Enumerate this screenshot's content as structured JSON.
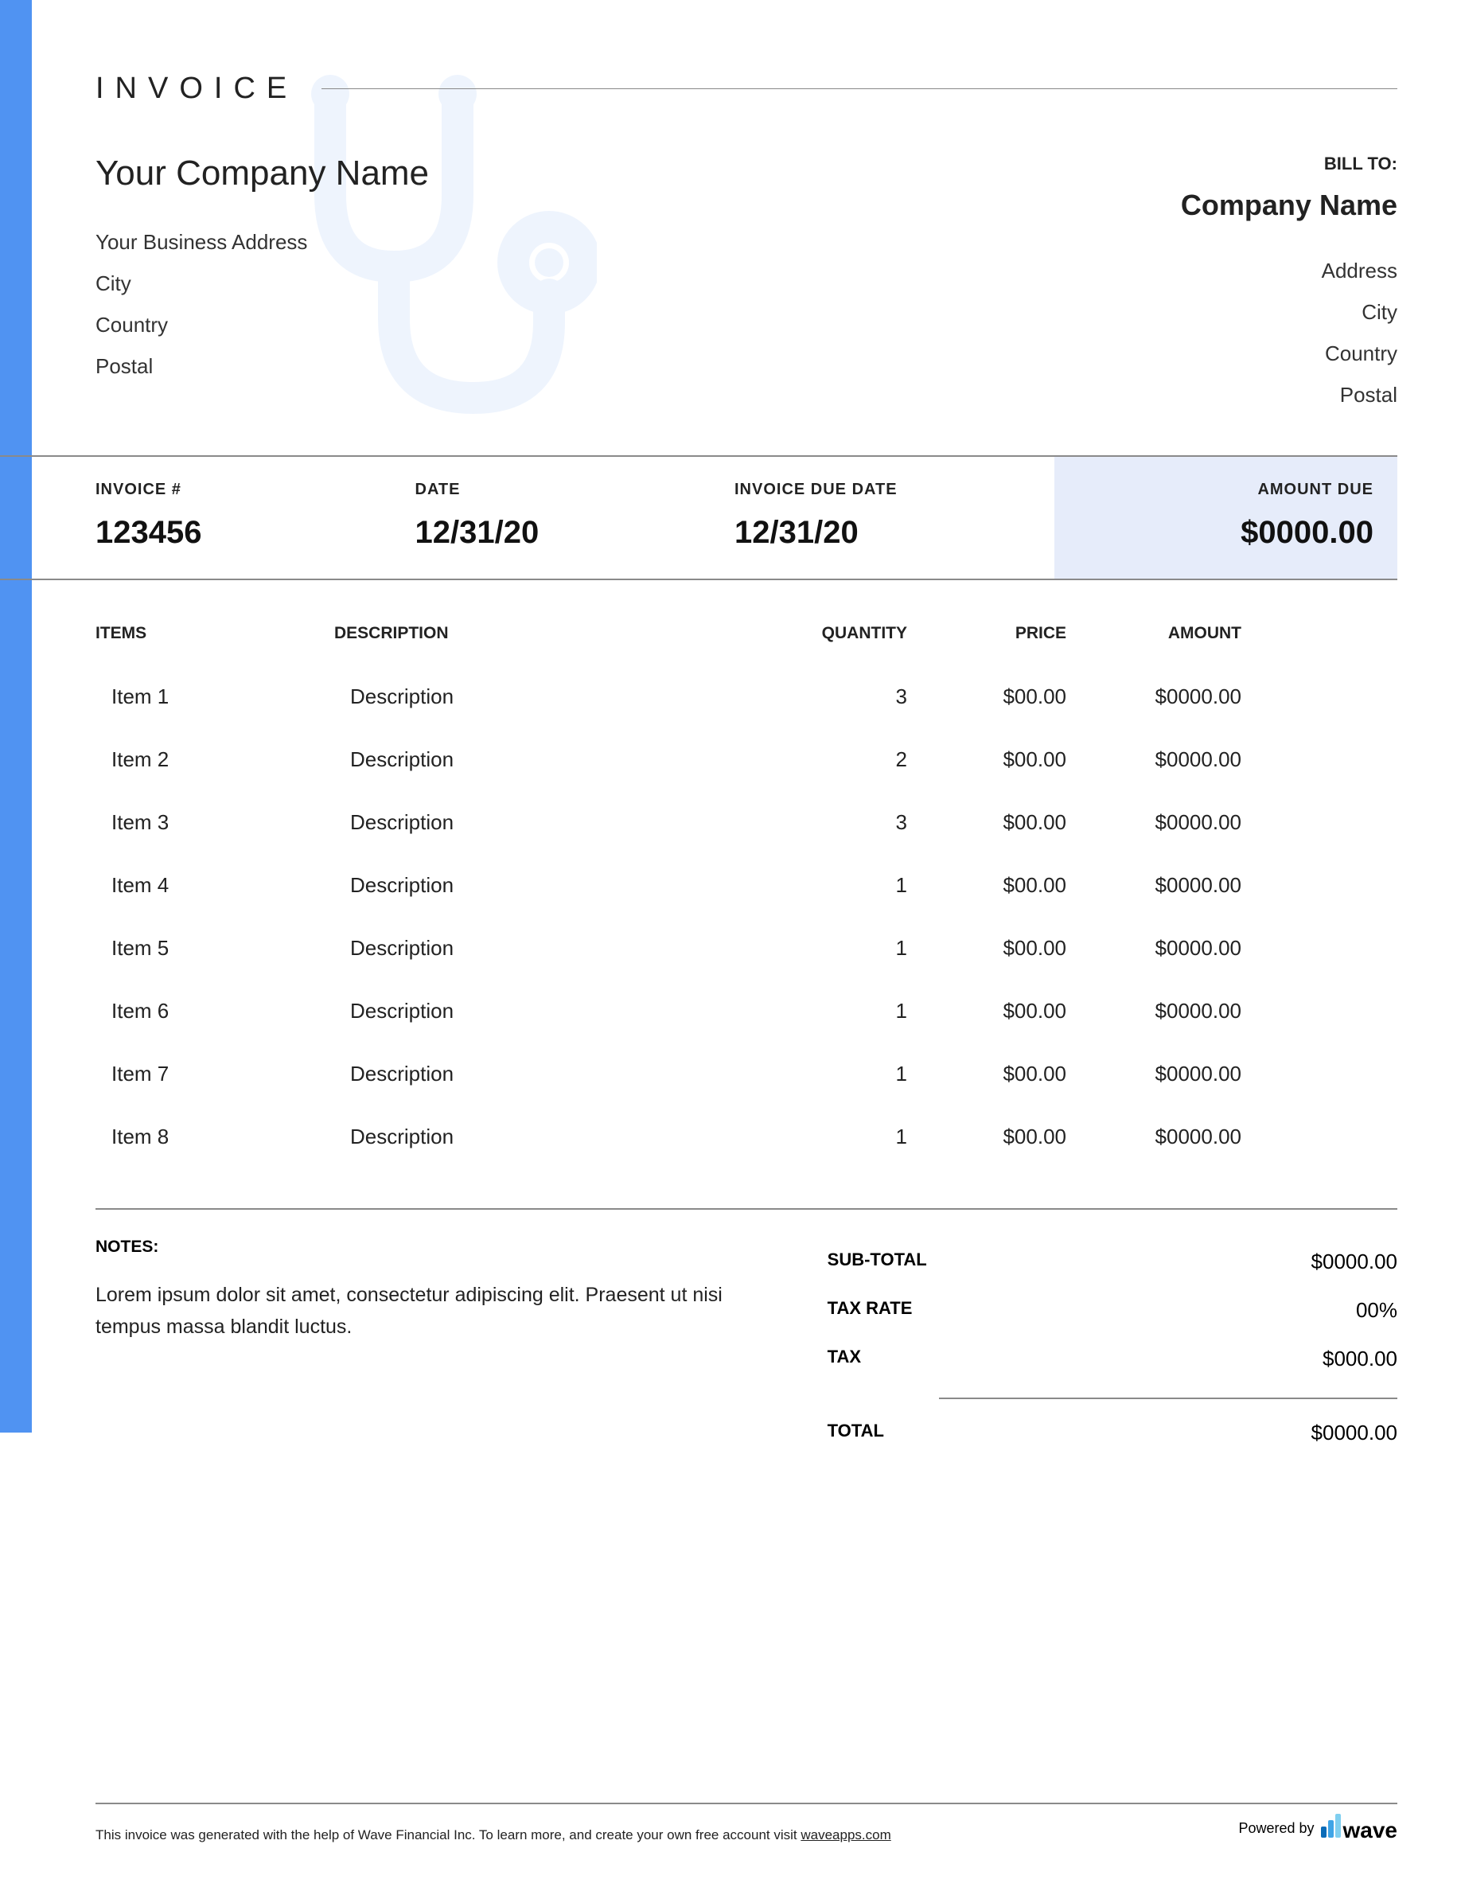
{
  "colors": {
    "accent_bar": "#5093f2",
    "amount_due_bg": "#e6ecfa",
    "border": "#8a8a8a",
    "stethoscope": "#c6dbfa",
    "wave_bar1": "#0a6bb8",
    "wave_bar2": "#3fa4e6",
    "wave_bar3": "#7fcff0"
  },
  "header": {
    "title": "INVOICE"
  },
  "from": {
    "company": "Your Company Name",
    "address": "Your Business Address",
    "city": "City",
    "country": "Country",
    "postal": "Postal"
  },
  "to": {
    "label": "BILL TO:",
    "company": "Company Name",
    "address": "Address",
    "city": "City",
    "country": "Country",
    "postal": "Postal"
  },
  "meta": {
    "invoice_num_label": "INVOICE #",
    "invoice_num": "123456",
    "date_label": "DATE",
    "date": "12/31/20",
    "due_label": "INVOICE DUE DATE",
    "due": "12/31/20",
    "amount_due_label": "AMOUNT DUE",
    "amount_due": "$0000.00"
  },
  "items": {
    "columns": {
      "items": "ITEMS",
      "description": "DESCRIPTION",
      "quantity": "QUANTITY",
      "price": "PRICE",
      "amount": "AMOUNT"
    },
    "rows": [
      {
        "item": "Item 1",
        "desc": "Description",
        "qty": "3",
        "price": "$00.00",
        "amount": "$0000.00"
      },
      {
        "item": "Item 2",
        "desc": "Description",
        "qty": "2",
        "price": "$00.00",
        "amount": "$0000.00"
      },
      {
        "item": "Item 3",
        "desc": "Description",
        "qty": "3",
        "price": "$00.00",
        "amount": "$0000.00"
      },
      {
        "item": "Item 4",
        "desc": "Description",
        "qty": "1",
        "price": "$00.00",
        "amount": "$0000.00"
      },
      {
        "item": "Item 5",
        "desc": "Description",
        "qty": "1",
        "price": "$00.00",
        "amount": "$0000.00"
      },
      {
        "item": "Item 6",
        "desc": "Description",
        "qty": "1",
        "price": "$00.00",
        "amount": "$0000.00"
      },
      {
        "item": "Item 7",
        "desc": "Description",
        "qty": "1",
        "price": "$00.00",
        "amount": "$0000.00"
      },
      {
        "item": "Item 8",
        "desc": "Description",
        "qty": "1",
        "price": "$00.00",
        "amount": "$0000.00"
      }
    ]
  },
  "notes": {
    "label": "NOTES:",
    "text": "Lorem ipsum dolor sit amet, consectetur adipiscing elit. Praesent ut nisi tempus massa blandit luctus."
  },
  "totals": {
    "subtotal_label": "SUB-TOTAL",
    "subtotal": "$0000.00",
    "tax_rate_label": "TAX RATE",
    "tax_rate": "00%",
    "tax_label": "TAX",
    "tax": "$000.00",
    "total_label": "TOTAL",
    "total": "$0000.00"
  },
  "footer": {
    "text_prefix": "This invoice was generated with the help of Wave Financial Inc. To learn more, and create your own free account visit ",
    "link": "waveapps.com",
    "powered_by": "Powered by",
    "brand": "wave"
  }
}
